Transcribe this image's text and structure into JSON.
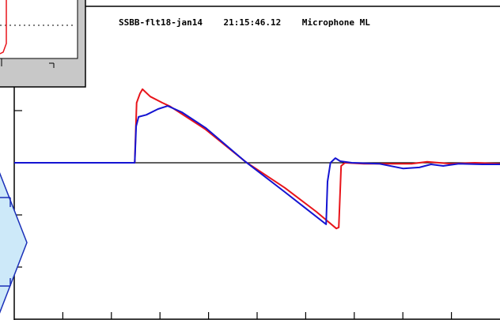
{
  "chart_data": {
    "type": "line",
    "title": "SSBB-flt18-jan14    21:15:46.12    Microphone ML",
    "xlim": [
      0,
      10
    ],
    "ylim": [
      -3,
      3
    ],
    "xticks": [
      1,
      2,
      3,
      4,
      5,
      6,
      7,
      8,
      9
    ],
    "yticks": [
      -2,
      -1,
      0,
      1,
      2
    ],
    "series": [
      {
        "name": "red",
        "color": "#e8141a",
        "x": [
          0,
          2.48,
          2.52,
          2.59,
          2.64,
          2.8,
          3.05,
          3.21,
          3.94,
          4.76,
          5.57,
          6.22,
          6.63,
          6.68,
          6.73,
          6.81,
          7.2,
          7.69,
          8.18,
          8.5,
          8.99,
          9.48,
          10
        ],
        "values": [
          0,
          0,
          1.15,
          1.33,
          1.41,
          1.27,
          1.15,
          1.08,
          0.64,
          0.02,
          -0.48,
          -0.94,
          -1.26,
          -1.24,
          -0.06,
          0,
          -0.02,
          -0.02,
          -0.02,
          0.02,
          -0.02,
          0,
          -0.02
        ]
      },
      {
        "name": "blue",
        "color": "#1414d2",
        "x": [
          0,
          2.48,
          2.51,
          2.56,
          2.72,
          2.96,
          3.16,
          3.45,
          3.94,
          4.76,
          5.57,
          6.42,
          6.45,
          6.51,
          6.61,
          6.71,
          6.95,
          7.52,
          8.01,
          8.34,
          8.58,
          8.83,
          9.15,
          9.64,
          10
        ],
        "values": [
          0,
          0,
          0.7,
          0.88,
          0.92,
          1.03,
          1.09,
          0.97,
          0.67,
          0.02,
          -0.56,
          -1.18,
          -0.36,
          0,
          0.09,
          0.03,
          0,
          -0.02,
          -0.11,
          -0.09,
          -0.03,
          -0.06,
          -0.02,
          -0.03,
          -0.03
        ]
      }
    ]
  }
}
